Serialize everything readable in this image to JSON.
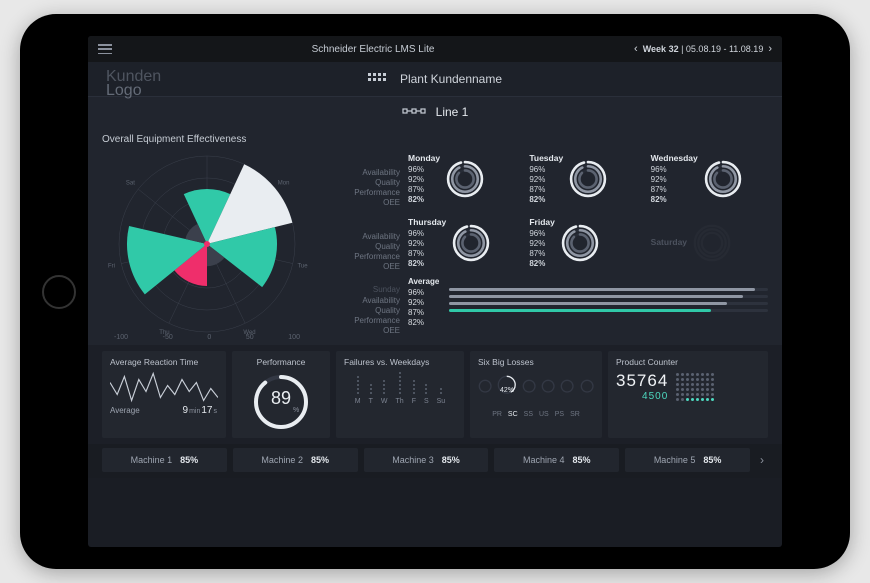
{
  "app": {
    "title": "Schneider Electric LMS Lite"
  },
  "week": {
    "label": "Week 32",
    "range": "05.08.19 - 11.08.19"
  },
  "logo": {
    "line1": "Kunden",
    "line2": "Logo"
  },
  "plant": {
    "name": "Plant Kundenname"
  },
  "line": {
    "name": "Line 1"
  },
  "oee": {
    "title": "Overall Equipment Effectiveness",
    "metric_labels": [
      "Availability",
      "Quality",
      "Performance",
      "OEE"
    ],
    "radar": {
      "day_labels": [
        "Sun",
        "Mon",
        "Tue",
        "Wed",
        "Thu",
        "Fri",
        "Sat"
      ],
      "wedges": [
        {
          "angle_start": -115,
          "angle_end": -65,
          "r": 55,
          "fill": "#30c9a8"
        },
        {
          "angle_start": -65,
          "angle_end": -14,
          "r": 88,
          "fill": "#e9edf1"
        },
        {
          "angle_start": -14,
          "angle_end": 38,
          "r": 70,
          "fill": "#30c9a8"
        },
        {
          "angle_start": 38,
          "angle_end": 90,
          "r": 22,
          "fill": "#3b404c"
        },
        {
          "angle_start": 90,
          "angle_end": 141,
          "r": 42,
          "fill": "#ef2e6b"
        },
        {
          "angle_start": 141,
          "angle_end": 193,
          "r": 80,
          "fill": "#30c9a8"
        },
        {
          "angle_start": 193,
          "angle_end": 245,
          "r": 22,
          "fill": "#3b404c"
        }
      ],
      "scale": [
        "-100",
        "-50",
        "0",
        "50",
        "100"
      ],
      "grid_color": "#3a3f4b",
      "center_dot": "#ef2e6b"
    },
    "days": [
      {
        "name": "Monday",
        "avail": "96%",
        "qual": "92%",
        "perf": "87%",
        "oee": "82%",
        "ring": {
          "a": 96,
          "q": 92,
          "p": 87
        }
      },
      {
        "name": "Tuesday",
        "avail": "96%",
        "qual": "92%",
        "perf": "87%",
        "oee": "82%",
        "ring": {
          "a": 96,
          "q": 92,
          "p": 87
        }
      },
      {
        "name": "Wednesday",
        "avail": "96%",
        "qual": "92%",
        "perf": "87%",
        "oee": "82%",
        "ring": {
          "a": 96,
          "q": 92,
          "p": 87
        }
      },
      {
        "name": "Thursday",
        "avail": "96%",
        "qual": "92%",
        "perf": "87%",
        "oee": "82%",
        "ring": {
          "a": 96,
          "q": 92,
          "p": 87
        }
      },
      {
        "name": "Friday",
        "avail": "96%",
        "qual": "92%",
        "perf": "87%",
        "oee": "82%",
        "ring": {
          "a": 96,
          "q": 92,
          "p": 87
        }
      },
      {
        "name": "Saturday",
        "muted": true
      },
      {
        "name": "Sunday",
        "muted": true
      }
    ],
    "average": {
      "name": "Average",
      "avail": "96%",
      "qual": "92%",
      "perf": "87%",
      "oee": "82%",
      "bars": [
        {
          "v": 96,
          "c": "#8f96a3"
        },
        {
          "v": 92,
          "c": "#8f96a3"
        },
        {
          "v": 87,
          "c": "#8f96a3"
        },
        {
          "v": 82,
          "c": "#30c9a8"
        }
      ]
    },
    "ring_colors": {
      "a": "#e9edf1",
      "q": "#8f96a3",
      "p": "#5b6270",
      "track": "#33384400"
    }
  },
  "cards": {
    "reaction": {
      "title": "Average Reaction Time",
      "label": "Average",
      "min": "9",
      "sec": "17",
      "spark": [
        22,
        14,
        26,
        10,
        24,
        16,
        28,
        12,
        20,
        14,
        24,
        16,
        22,
        10,
        18,
        12
      ],
      "color": "#c9cfd8"
    },
    "performance": {
      "title": "Performance",
      "value": "89",
      "unit": "%",
      "pct": 89,
      "color": "#e9edf1",
      "track": "#333844"
    },
    "failures": {
      "title": "Failures vs. Weekdays",
      "labels": [
        "M",
        "T",
        "W",
        "Th",
        "F",
        "S",
        "Su"
      ],
      "cols": [
        5,
        3,
        4,
        6,
        4,
        3,
        2
      ],
      "dot_color": "#6b7280"
    },
    "losses": {
      "title": "Six Big Losses",
      "labels": [
        "PR",
        "SC",
        "SS",
        "US",
        "PS",
        "SR"
      ],
      "active_index": 1,
      "active_value": "42%",
      "ring_color": "#e9edf1",
      "track": "#333844"
    },
    "counter": {
      "title": "Product Counter",
      "value": "35764",
      "sub": "4500",
      "dots_total": 48,
      "dots_on": 6
    }
  },
  "machines": [
    {
      "name": "Machine 1",
      "val": "85%"
    },
    {
      "name": "Machine 2",
      "val": "85%"
    },
    {
      "name": "Machine 3",
      "val": "85%"
    },
    {
      "name": "Machine 4",
      "val": "85%"
    },
    {
      "name": "Machine 5",
      "val": "85%"
    }
  ],
  "colors": {
    "bg": "#21252e",
    "accent": "#30c9a8",
    "pink": "#ef2e6b",
    "text": "#d7dbe0",
    "muted": "#6e7582"
  }
}
